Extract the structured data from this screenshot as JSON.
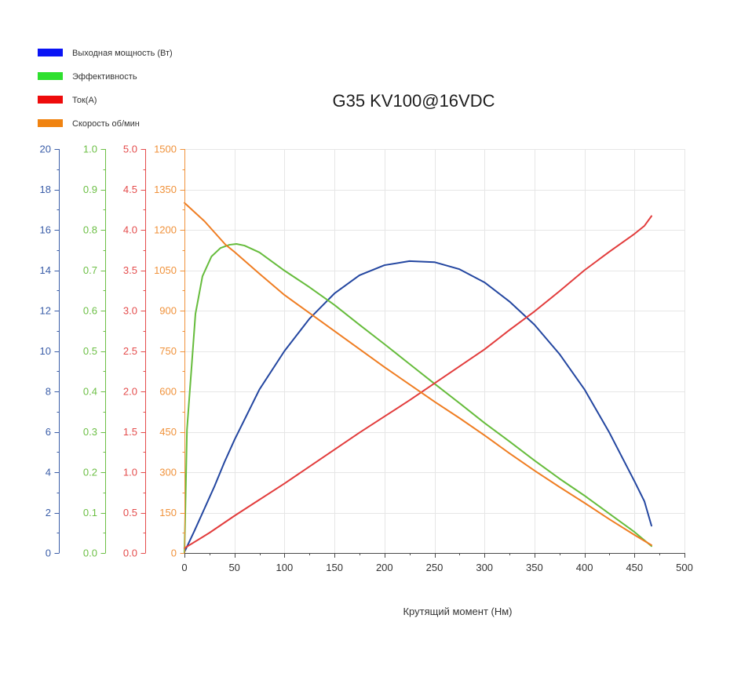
{
  "chart_data": {
    "type": "line",
    "title": "G35 KV100@16VDC",
    "xlabel": "Крутящий момент (Нм)",
    "xlim": [
      0,
      500
    ],
    "x_ticks": [
      "0",
      "50",
      "100",
      "150",
      "200",
      "250",
      "300",
      "350",
      "400",
      "450",
      "500"
    ],
    "grid": true,
    "legend": "top-left",
    "y_axes": [
      {
        "min": 0,
        "max": 20,
        "color": "#3a5da8",
        "ticks": [
          "0",
          "2",
          "4",
          "6",
          "8",
          "10",
          "12",
          "14",
          "16",
          "18",
          "20"
        ]
      },
      {
        "min": 0,
        "max": 1.0,
        "color": "#6cbf45",
        "ticks": [
          "0.0",
          "0.1",
          "0.2",
          "0.3",
          "0.4",
          "0.5",
          "0.6",
          "0.7",
          "0.8",
          "0.9",
          "1.0"
        ]
      },
      {
        "min": 0,
        "max": 5.0,
        "color": "#e44c4c",
        "ticks": [
          "0.0",
          "0.5",
          "1.0",
          "1.5",
          "2.0",
          "2.5",
          "3.0",
          "3.5",
          "4.0",
          "4.5",
          "5.0"
        ]
      },
      {
        "min": 0,
        "max": 1500,
        "color": "#f0923b",
        "ticks": [
          "0",
          "150",
          "300",
          "450",
          "600",
          "750",
          "900",
          "1050",
          "1200",
          "1350",
          "1500"
        ]
      }
    ],
    "series": [
      {
        "name": "Выходная мощность (Вт)",
        "y_axis": 0,
        "color": "#2346a0",
        "swatch_color": "#0a14f5",
        "x": [
          0,
          10,
          20,
          30,
          40,
          50,
          75,
          100,
          125,
          150,
          175,
          200,
          225,
          250,
          275,
          300,
          325,
          350,
          375,
          400,
          425,
          450,
          460,
          467
        ],
        "y": [
          0.05,
          1.1,
          2.2,
          3.3,
          4.5,
          5.6,
          8.1,
          10.0,
          11.6,
          12.85,
          13.75,
          14.25,
          14.45,
          14.4,
          14.05,
          13.4,
          12.45,
          11.3,
          9.85,
          8.1,
          5.95,
          3.55,
          2.55,
          1.35
        ]
      },
      {
        "name": "Эффективность",
        "y_axis": 1,
        "color": "#66bc3c",
        "swatch_color": "#2ee02e",
        "x": [
          0,
          2.5,
          11,
          18,
          27,
          36,
          45,
          52,
          60,
          75,
          100,
          125,
          150,
          175,
          200,
          225,
          250,
          275,
          300,
          325,
          350,
          375,
          400,
          425,
          450,
          467
        ],
        "y": [
          0,
          0.305,
          0.592,
          0.685,
          0.734,
          0.755,
          0.763,
          0.765,
          0.761,
          0.744,
          0.699,
          0.658,
          0.614,
          0.565,
          0.517,
          0.468,
          0.419,
          0.371,
          0.322,
          0.276,
          0.229,
          0.184,
          0.142,
          0.097,
          0.052,
          0.017
        ]
      },
      {
        "name": "Ток(A)",
        "y_axis": 2,
        "color": "#e23c3c",
        "swatch_color": "#ee0b0b",
        "x": [
          0,
          25,
          50,
          75,
          100,
          125,
          150,
          175,
          200,
          225,
          250,
          275,
          300,
          325,
          350,
          375,
          400,
          425,
          450,
          460,
          467
        ],
        "y": [
          0.06,
          0.25,
          0.46,
          0.66,
          0.86,
          1.07,
          1.28,
          1.49,
          1.69,
          1.89,
          2.1,
          2.31,
          2.52,
          2.76,
          2.99,
          3.24,
          3.5,
          3.73,
          3.95,
          4.05,
          4.17
        ]
      },
      {
        "name": "Скорость об/мин",
        "y_axis": 3,
        "color": "#ef7d22",
        "swatch_color": "#f08311",
        "x": [
          0,
          20,
          41,
          50,
          75,
          100,
          125,
          150,
          175,
          200,
          225,
          250,
          275,
          300,
          325,
          350,
          375,
          400,
          425,
          450,
          467
        ],
        "y": [
          1300,
          1232,
          1145,
          1118,
          1037,
          958,
          891,
          824,
          757,
          690,
          626,
          562,
          501,
          437,
          370,
          306,
          245,
          186,
          125,
          67,
          29
        ]
      }
    ]
  }
}
